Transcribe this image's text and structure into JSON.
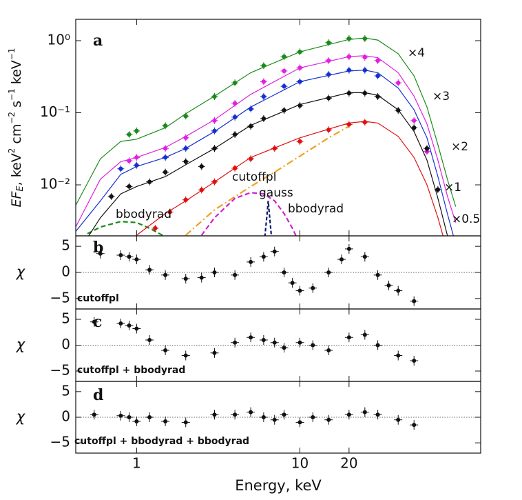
{
  "chart_data": [
    {
      "type": "spectrum",
      "panel_label": "a",
      "log_x": true,
      "log_y": true,
      "xlim": [
        0.424,
        128
      ],
      "ylim": [
        0.00196,
        1.98
      ],
      "yticks": [
        {
          "value": 1,
          "label": "10⁰"
        },
        {
          "value": 0.1,
          "label": "10⁻¹"
        },
        {
          "value": 0.01,
          "label": "10⁻²"
        }
      ],
      "ylabel": [
        "EF",
        "E",
        ", keV",
        "2",
        " cm",
        "−2",
        " s",
        "−1",
        " keV",
        "−1"
      ],
      "series": [
        {
          "name": "×4",
          "color": "#1a8a1a",
          "x": [
            0.9,
            1,
            1.5,
            2,
            3,
            4,
            6,
            8,
            10,
            15,
            20,
            25
          ],
          "values": [
            0.05,
            0.056,
            0.066,
            0.09,
            0.168,
            0.26,
            0.45,
            0.6,
            0.7,
            0.94,
            1.07,
            1.07
          ],
          "model": {
            "x": [
              0.42,
              0.6,
              0.8,
              1,
              1.5,
              2,
              3,
              5,
              10,
              20,
              25,
              30,
              40,
              50,
              60,
              70,
              80,
              90
            ],
            "values": [
              0.005,
              0.023,
              0.04,
              0.043,
              0.062,
              0.097,
              0.17,
              0.36,
              0.7,
              1.04,
              1.09,
              1.02,
              0.66,
              0.325,
              0.12,
              0.036,
              0.012,
              0.005
            ]
          }
        },
        {
          "name": "×3",
          "color": "#e020e0",
          "x": [
            0.9,
            1,
            1.5,
            2,
            3,
            4,
            6,
            8,
            10,
            15,
            20,
            25,
            30,
            40,
            50,
            60
          ],
          "values": [
            0.0216,
            0.024,
            0.032,
            0.045,
            0.078,
            0.135,
            0.27,
            0.38,
            0.42,
            0.53,
            0.6,
            0.59,
            0.53,
            0.26,
            0.078,
            0.029
          ],
          "model": {
            "x": [
              0.42,
              0.6,
              0.8,
              1,
              1.5,
              2,
              3,
              5,
              10,
              20,
              25,
              30,
              40,
              50,
              60,
              70,
              80,
              90
            ],
            "values": [
              0.0025,
              0.012,
              0.021,
              0.024,
              0.033,
              0.047,
              0.08,
              0.18,
              0.42,
              0.6,
              0.62,
              0.58,
              0.36,
              0.17,
              0.07,
              0.022,
              0.007,
              0.003
            ]
          }
        },
        {
          "name": "×2",
          "color": "#1530d0",
          "x": [
            0.8,
            1,
            1.5,
            2,
            3,
            4,
            5,
            6,
            8,
            10,
            15,
            20,
            25,
            30
          ],
          "values": [
            0.0167,
            0.0187,
            0.024,
            0.032,
            0.056,
            0.087,
            0.113,
            0.168,
            0.233,
            0.27,
            0.34,
            0.39,
            0.39,
            0.325
          ],
          "model": {
            "x": [
              0.42,
              0.6,
              0.8,
              1,
              1.5,
              2,
              3,
              5,
              10,
              20,
              25,
              30,
              40,
              50,
              60,
              70,
              80,
              90
            ],
            "values": [
              0.0022,
              0.006,
              0.014,
              0.018,
              0.024,
              0.032,
              0.055,
              0.12,
              0.27,
              0.38,
              0.39,
              0.36,
              0.22,
              0.11,
              0.045,
              0.013,
              0.004,
              0.0015
            ]
          }
        },
        {
          "name": "×1",
          "color": "#111111",
          "x": [
            0.7,
            0.9,
            1.2,
            1.5,
            2,
            2.5,
            3,
            4,
            5,
            6,
            8,
            10,
            15,
            20,
            25,
            30,
            40,
            50,
            60,
            70
          ],
          "values": [
            0.0069,
            0.0095,
            0.011,
            0.015,
            0.021,
            0.018,
            0.032,
            0.05,
            0.065,
            0.083,
            0.108,
            0.126,
            0.16,
            0.187,
            0.187,
            0.168,
            0.108,
            0.062,
            0.032,
            0.0086
          ],
          "model": {
            "x": [
              0.42,
              0.6,
              0.8,
              1,
              1.5,
              2,
              3,
              5,
              10,
              20,
              25,
              30,
              40,
              50,
              60,
              70,
              80,
              90
            ],
            "values": [
              0.001,
              0.0035,
              0.0075,
              0.0095,
              0.013,
              0.019,
              0.032,
              0.067,
              0.13,
              0.19,
              0.19,
              0.175,
              0.11,
              0.055,
              0.022,
              0.0065,
              0.002,
              0.0008
            ]
          }
        },
        {
          "name": "×0.5",
          "color": "#e01010",
          "x": [
            1.3,
            1.6,
            2,
            2.5,
            3,
            4,
            5,
            7,
            10,
            15,
            20,
            25
          ],
          "values": [
            0.0025,
            0.0042,
            0.0062,
            0.0085,
            0.011,
            0.017,
            0.023,
            0.032,
            0.04,
            0.058,
            0.069,
            0.074
          ],
          "model": {
            "x": [
              0.42,
              0.6,
              0.8,
              1,
              1.5,
              2,
              3,
              5,
              10,
              20,
              25,
              30,
              40,
              50,
              60,
              70,
              80,
              90
            ],
            "values": [
              0.0001,
              0.0004,
              0.001,
              0.002,
              0.004,
              0.006,
              0.011,
              0.024,
              0.045,
              0.072,
              0.076,
              0.072,
              0.047,
              0.024,
              0.01,
              0.0035,
              0.0012,
              0.0004
            ]
          }
        }
      ],
      "components": [
        {
          "name": "cutoffpl",
          "color": "#f0a020",
          "dash": "10 4 2 4",
          "x": [
            2,
            3,
            5,
            7,
            10,
            15,
            20
          ],
          "values": [
            0.002,
            0.0045,
            0.0095,
            0.015,
            0.025,
            0.045,
            0.065
          ]
        },
        {
          "name": "gauss",
          "color": "#0a1a6a",
          "dash": "5 3",
          "x": [
            6.1,
            6.3,
            6.4,
            6.5,
            6.7
          ],
          "values": [
            0.0019,
            0.004,
            0.006,
            0.004,
            0.0019
          ]
        },
        {
          "name": "bbodyrad",
          "color": "#1a8a1a",
          "dash": "7 4",
          "x": [
            0.5,
            0.6,
            0.8,
            1,
            1.2,
            1.5
          ],
          "values": [
            0.0021,
            0.0026,
            0.0031,
            0.003,
            0.0025,
            0.0019
          ]
        },
        {
          "name": "bbodyrad",
          "color": "#d020d0",
          "dash": "7 4",
          "x": [
            2.5,
            3,
            4,
            5,
            6,
            7,
            8,
            9,
            10
          ],
          "values": [
            0.002,
            0.0035,
            0.0065,
            0.0078,
            0.0075,
            0.006,
            0.004,
            0.0025,
            0.0015
          ]
        }
      ]
    },
    {
      "type": "residual",
      "panel_label": "b",
      "model_label": "cutoffpl",
      "log_x": true,
      "xlim": [
        0.424,
        128
      ],
      "ylim": [
        -7,
        7
      ],
      "yticks": [
        5,
        0,
        {
          "value": -5,
          "label": "−5"
        }
      ],
      "ylabel": "χ",
      "x": [
        0.6,
        0.8,
        0.9,
        1,
        1.2,
        1.5,
        2,
        2.5,
        3,
        4,
        5,
        6,
        7,
        8,
        9,
        10,
        12,
        15,
        18,
        20,
        25,
        30,
        35,
        40,
        50
      ],
      "values": [
        3.6,
        3.3,
        3,
        2.5,
        0.5,
        -0.5,
        -1.2,
        -1,
        0,
        -0.5,
        2,
        3,
        4,
        0,
        -2,
        -3.5,
        -3,
        0,
        2.5,
        4.5,
        3,
        -0.5,
        -2.5,
        -3.5,
        -5.5
      ]
    },
    {
      "type": "residual",
      "panel_label": "c",
      "model_label": "cutoffpl + bbodyrad",
      "log_x": true,
      "xlim": [
        0.424,
        128
      ],
      "ylim": [
        -7,
        7
      ],
      "yticks": [
        5,
        0,
        {
          "value": -5,
          "label": "−5"
        }
      ],
      "ylabel": "χ",
      "x": [
        0.55,
        0.8,
        0.9,
        1,
        1.2,
        1.5,
        2,
        3,
        4,
        5,
        6,
        7,
        8,
        10,
        12,
        15,
        20,
        25,
        30,
        40,
        50
      ],
      "values": [
        4.5,
        4.2,
        3.8,
        3.2,
        1,
        -1,
        -2,
        -1.5,
        0.5,
        1.5,
        1,
        0.5,
        -0.5,
        0.5,
        0,
        -1,
        1.5,
        2,
        0,
        -2,
        -3
      ]
    },
    {
      "type": "residual",
      "panel_label": "d",
      "model_label": "cutoffpl + bbodyrad + bbodyrad",
      "log_x": true,
      "xlim": [
        0.424,
        128
      ],
      "ylim": [
        -7,
        7
      ],
      "yticks": [
        5,
        0,
        {
          "value": -5,
          "label": "−5"
        }
      ],
      "ylabel": "χ",
      "xticks": [
        1,
        10,
        20
      ],
      "xlabel": "Energy, keV",
      "x": [
        0.55,
        0.8,
        0.9,
        1,
        1.2,
        1.5,
        2,
        3,
        4,
        5,
        6,
        7,
        8,
        10,
        12,
        15,
        20,
        25,
        30,
        40,
        50
      ],
      "values": [
        0.5,
        0.3,
        0,
        -0.8,
        0,
        -0.8,
        -1,
        0.5,
        0.5,
        1,
        0,
        -0.5,
        0.5,
        -1,
        0,
        -0.5,
        0.5,
        1,
        0.5,
        -0.5,
        -1.5
      ]
    }
  ]
}
